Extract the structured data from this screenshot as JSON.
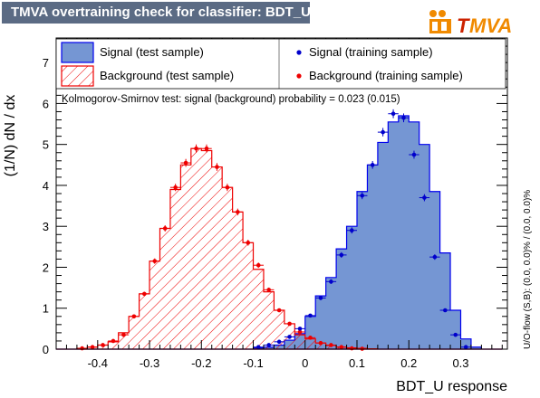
{
  "header": {
    "title": "TMVA overtraining check for classifier: BDT_U",
    "logo_text": "MVA",
    "logo_prefix": "T"
  },
  "colors": {
    "title_bg": "#5b6b84",
    "signal_fill": "#7596d3",
    "signal_line": "#0000ee",
    "background_line": "#ee0000",
    "signal_points": "#0000cc",
    "background_points": "#ee0000",
    "logo_orange": "#f08a00",
    "logo_red": "#cc2200"
  },
  "chart_data": {
    "type": "histogram",
    "xlabel": "BDT_U response",
    "ylabel": "(1/N) dN / dx",
    "xlim": [
      -0.48,
      0.39
    ],
    "ylim": [
      0,
      7.6
    ],
    "xticks": [
      -0.4,
      -0.3,
      -0.2,
      -0.1,
      0,
      0.1,
      0.2,
      0.3
    ],
    "xtick_labels": [
      "-0.4",
      "-0.3",
      "-0.2",
      "-0.1",
      "0",
      "0.1",
      "0.2",
      "0.3"
    ],
    "yticks": [
      0,
      1,
      2,
      3,
      4,
      5,
      6,
      7
    ],
    "ytick_labels": [
      "0",
      "1",
      "2",
      "3",
      "4",
      "5",
      "6",
      "7"
    ],
    "bin_edges": [
      -0.48,
      -0.46,
      -0.44,
      -0.42,
      -0.4,
      -0.38,
      -0.36,
      -0.34,
      -0.32,
      -0.3,
      -0.28,
      -0.26,
      -0.24,
      -0.22,
      -0.2,
      -0.18,
      -0.16,
      -0.14,
      -0.12,
      -0.1,
      -0.08,
      -0.06,
      -0.04,
      -0.02,
      0.0,
      0.02,
      0.04,
      0.06,
      0.08,
      0.1,
      0.12,
      0.14,
      0.16,
      0.18,
      0.2,
      0.22,
      0.24,
      0.26,
      0.28,
      0.3,
      0.32,
      0.34,
      0.36,
      0.38
    ],
    "series": [
      {
        "name": "Signal (test sample)",
        "style": "filled-histogram",
        "values": [
          0,
          0,
          0,
          0,
          0,
          0,
          0,
          0,
          0,
          0,
          0,
          0,
          0,
          0,
          0,
          0,
          0,
          0,
          0,
          0.03,
          0.05,
          0.1,
          0.22,
          0.38,
          0.8,
          1.3,
          1.75,
          2.45,
          3.0,
          3.85,
          4.5,
          5.05,
          5.55,
          5.7,
          5.55,
          5.0,
          3.85,
          2.35,
          0.95,
          0.25,
          0.05,
          0,
          0
        ]
      },
      {
        "name": "Background (test sample)",
        "style": "hatched-histogram",
        "values": [
          0,
          0,
          0.02,
          0.05,
          0.1,
          0.18,
          0.4,
          0.8,
          1.35,
          2.15,
          2.95,
          3.9,
          4.5,
          4.9,
          4.85,
          4.45,
          3.95,
          3.35,
          2.6,
          1.95,
          1.4,
          0.95,
          0.62,
          0.35,
          0.25,
          0.15,
          0.09,
          0.05,
          0.03,
          0.02,
          0.01,
          0,
          0,
          0,
          0,
          0,
          0,
          0,
          0,
          0,
          0,
          0,
          0
        ]
      },
      {
        "name": "Signal (training sample)",
        "style": "points",
        "values": [
          0,
          0,
          0,
          0,
          0,
          0,
          0,
          0,
          0,
          0,
          0,
          0,
          0,
          0,
          0,
          0,
          0,
          0,
          0,
          0.05,
          0.1,
          0.18,
          0.3,
          0.5,
          0.82,
          1.25,
          1.65,
          2.3,
          2.9,
          3.75,
          4.5,
          5.3,
          5.75,
          5.65,
          4.75,
          3.7,
          2.25,
          0.95,
          0.35,
          0.05,
          0,
          0,
          0
        ]
      },
      {
        "name": "Background (training sample)",
        "style": "points",
        "values": [
          0,
          0,
          0.02,
          0.05,
          0.1,
          0.2,
          0.35,
          0.8,
          1.35,
          2.15,
          2.95,
          3.95,
          4.55,
          4.9,
          4.9,
          4.45,
          3.95,
          3.35,
          2.6,
          2.05,
          1.45,
          0.95,
          0.62,
          0.42,
          0.28,
          0.15,
          0.1,
          0.05,
          0.02,
          0.01,
          0,
          0,
          0,
          0,
          0,
          0,
          0,
          0,
          0,
          0,
          0,
          0,
          0
        ]
      }
    ],
    "annotation": "Kolmogorov-Smirnov test: signal (background) probability = 0.023 (0.015)",
    "side_label": "U/O-flow (S,B): (0.0, 0.0)% / (0.0, 0.0)%",
    "legend": [
      {
        "label": "Signal (test sample)",
        "type": "filled"
      },
      {
        "label": "Signal (training sample)",
        "type": "point-signal"
      },
      {
        "label": "Background (test sample)",
        "type": "hatched"
      },
      {
        "label": "Background (training sample)",
        "type": "point-background"
      }
    ]
  }
}
